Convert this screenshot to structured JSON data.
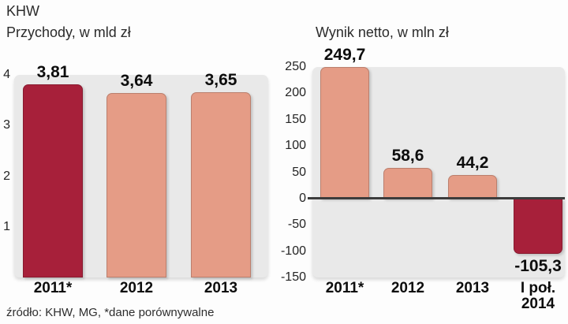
{
  "page": {
    "title": "KHW",
    "source_note": "źródło: KHW, MG, *dane porównywalne"
  },
  "colors": {
    "highlight_bar": "#a7203a",
    "normal_bar": "#e59c86",
    "plot_background": "#e9e9e9",
    "zero_line": "#3c3c3c",
    "text": "#1f1f1f"
  },
  "chart_data": [
    {
      "type": "bar",
      "title": "Przychody, w mld zł",
      "categories": [
        "2011*",
        "2012",
        "2013"
      ],
      "values": [
        3.81,
        3.64,
        3.65
      ],
      "value_labels": [
        "3,81",
        "3,64",
        "3,65"
      ],
      "bar_roles": [
        "highlight",
        "normal",
        "normal"
      ],
      "ylim": [
        0,
        4
      ],
      "yticks": [
        4,
        3,
        2,
        1
      ],
      "ytick_labels": [
        "4",
        "3",
        "2",
        "1"
      ],
      "grid": false,
      "legend": null,
      "xlabel": "",
      "ylabel": ""
    },
    {
      "type": "bar",
      "title": "Wynik netto, w mln zł",
      "categories": [
        "2011*",
        "2012",
        "2013",
        "I poł.\n2014"
      ],
      "values": [
        249.7,
        58.6,
        44.2,
        -105.3
      ],
      "value_labels": [
        "249,7",
        "58,6",
        "44,2",
        "-105,3"
      ],
      "bar_roles": [
        "normal",
        "normal",
        "normal",
        "highlight"
      ],
      "ylim": [
        -150,
        250
      ],
      "yticks": [
        250,
        200,
        150,
        100,
        50,
        0,
        -50,
        -100,
        -150
      ],
      "ytick_labels": [
        "250",
        "200",
        "150",
        "100",
        "50",
        "0",
        "-50",
        "-100",
        "-150"
      ],
      "grid": false,
      "legend": null,
      "xlabel": "",
      "ylabel": ""
    }
  ]
}
